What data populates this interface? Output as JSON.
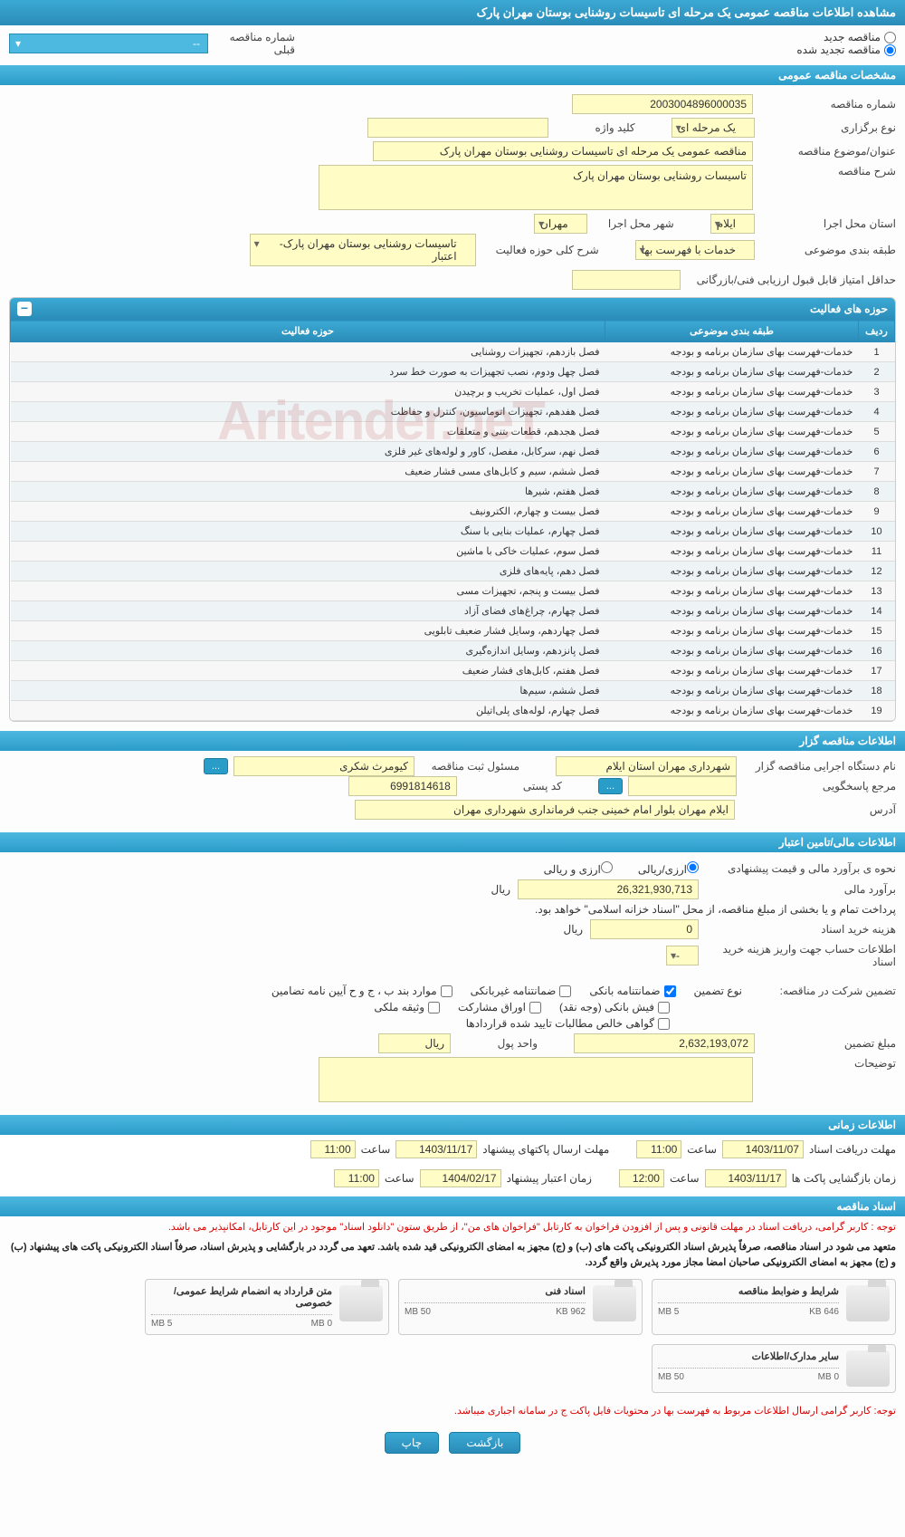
{
  "header": {
    "title": "مشاهده اطلاعات مناقصه عمومی یک مرحله ای تاسیسات روشنایی بوستان مهران پارک"
  },
  "radio": {
    "new": "مناقصه جدید",
    "renewed": "مناقصه تجدید شده",
    "prev_label": "شماره مناقصه قبلی",
    "prev_value": "--"
  },
  "sections": {
    "general": "مشخصات مناقصه عمومی",
    "org": "اطلاعات مناقصه گزار",
    "finance": "اطلاعات مالی/تامین اعتبار",
    "time": "اطلاعات زمانی",
    "docs": "اسناد مناقصه"
  },
  "general": {
    "tender_no_label": "شماره مناقصه",
    "tender_no": "2003004896000035",
    "type_label": "نوع برگزاری",
    "type": "یک مرحله ای",
    "keyword_label": "کلید واژه",
    "keyword": "",
    "title_label": "عنوان/موضوع مناقصه",
    "title": "مناقصه عمومی یک مرحله ای تاسیسات روشنایی بوستان مهران پارک",
    "desc_label": "شرح مناقصه",
    "desc": "تاسیسات روشنایی بوستان مهران پارک",
    "province_label": "استان محل اجرا",
    "province": "ایلام",
    "city_label": "شهر محل اجرا",
    "city": "مهران",
    "subject_cat_label": "طبقه بندی موضوعی",
    "subject_cat": "خدمات با فهرست بها",
    "activity_scope_label": "شرح کلی حوزه فعالیت",
    "activity_scope": "تاسیسات روشنایی بوستان مهران پارک- اعتبار",
    "min_score_label": "حداقل امتیاز قابل قبول ارزیابی فنی/بازرگانی",
    "min_score": ""
  },
  "activity_panel": {
    "title": "حوزه های فعالیت",
    "col_row": "ردیف",
    "col_cat": "طبقه بندی موضوعی",
    "col_act": "حوزه فعالیت",
    "rows": [
      {
        "n": "1",
        "cat": "خدمات-فهرست بهای سازمان برنامه و بودجه",
        "act": "فصل بازدهم، تجهیزات روشنایی"
      },
      {
        "n": "2",
        "cat": "خدمات-فهرست بهای سازمان برنامه و بودجه",
        "act": "فصل چهل ودوم، نصب تجهیزات به صورت خط سرد"
      },
      {
        "n": "3",
        "cat": "خدمات-فهرست بهای سازمان برنامه و بودجه",
        "act": "فصل اول، عملیات تخریب و برچیدن"
      },
      {
        "n": "4",
        "cat": "خدمات-فهرست بهای سازمان برنامه و بودجه",
        "act": "فصل هفدهم، تجهیزات اتوماسیون، کنترل و حفاظت"
      },
      {
        "n": "5",
        "cat": "خدمات-فهرست بهای سازمان برنامه و بودجه",
        "act": "فصل هجدهم، قطعات بتنی و متعلقات"
      },
      {
        "n": "6",
        "cat": "خدمات-فهرست بهای سازمان برنامه و بودجه",
        "act": "فصل نهم، سرکابل، مفصل، کاور و لوله‌های غیر فلزی"
      },
      {
        "n": "7",
        "cat": "خدمات-فهرست بهای سازمان برنامه و بودجه",
        "act": "فصل ششم، سیم و کابل‌های مسی فشار ضعیف"
      },
      {
        "n": "8",
        "cat": "خدمات-فهرست بهای سازمان برنامه و بودجه",
        "act": "فصل هفتم، شیرها"
      },
      {
        "n": "9",
        "cat": "خدمات-فهرست بهای سازمان برنامه و بودجه",
        "act": "فصل بیست و چهارم، الکترونیف"
      },
      {
        "n": "10",
        "cat": "خدمات-فهرست بهای سازمان برنامه و بودجه",
        "act": "فصل چهارم، عملیات بنایی با سنگ"
      },
      {
        "n": "11",
        "cat": "خدمات-فهرست بهای سازمان برنامه و بودجه",
        "act": "فصل سوم، عملیات خاکی با ماشین"
      },
      {
        "n": "12",
        "cat": "خدمات-فهرست بهای سازمان برنامه و بودجه",
        "act": "فصل دهم، پایه‌های فلزی"
      },
      {
        "n": "13",
        "cat": "خدمات-فهرست بهای سازمان برنامه و بودجه",
        "act": "فصل بیست و پنجم، تجهیزات مسی"
      },
      {
        "n": "14",
        "cat": "خدمات-فهرست بهای سازمان برنامه و بودجه",
        "act": "فصل چهارم، چراغ‌های فضای آزاد"
      },
      {
        "n": "15",
        "cat": "خدمات-فهرست بهای سازمان برنامه و بودجه",
        "act": "فصل چهاردهم، وسایل فشار ضعیف تابلویی"
      },
      {
        "n": "16",
        "cat": "خدمات-فهرست بهای سازمان برنامه و بودجه",
        "act": "فصل پانزدهم، وسایل اندازه‌گیری"
      },
      {
        "n": "17",
        "cat": "خدمات-فهرست بهای سازمان برنامه و بودجه",
        "act": "فصل هفتم، کابل‌های فشار ضعیف"
      },
      {
        "n": "18",
        "cat": "خدمات-فهرست بهای سازمان برنامه و بودجه",
        "act": "فصل ششم، سیم‌ها"
      },
      {
        "n": "19",
        "cat": "خدمات-فهرست بهای سازمان برنامه و بودجه",
        "act": "فصل چهارم، لوله‌های پلی‌اتیلن"
      }
    ]
  },
  "org": {
    "agency_label": "نام دستگاه اجرایی مناقصه گزار",
    "agency": "شهرداری مهران استان ایلام",
    "manager_label": "مسئول ثبت مناقصه",
    "manager": "کیومرث   شکری",
    "contact_label": "مرجع پاسخگویی",
    "contact": "",
    "postal_label": "کد پستی",
    "postal": "6991814618",
    "address_label": "آدرس",
    "address": "ایلام   مهران بلوار امام خمینی جنب فرمانداری شهرداری مهران",
    "more_btn": "..."
  },
  "finance": {
    "est_label": "نحوه ی برآورد مالی و قیمت پیشنهادی",
    "est_opt1": "ارزی/ریالی",
    "est_opt2": "ارزی و ریالی",
    "amount_label": "برآورد مالی",
    "amount": "26,321,930,713",
    "unit": "ریال",
    "treasury_note": "پرداخت تمام و یا بخشی از مبلغ مناقصه، از محل \"اسناد خزانه اسلامی\" خواهد بود.",
    "doc_cost_label": "هزینه خرید اسناد",
    "doc_cost": "0",
    "acc_label": "اطلاعات حساب جهت واریز هزینه خرید اسناد",
    "acc": "--",
    "guarantee_type_label": "نوع تضمین",
    "guarantee_label": "تضمین شرکت در مناقصه:",
    "g_bank": "ضمانتنامه بانکی",
    "g_nonbank": "ضمانتنامه غیربانکی",
    "g_clause": "موارد بند ب ، ج و ح آیین نامه تضامین",
    "g_fish": "فیش بانکی (وجه نقد)",
    "g_bonds": "اوراق مشارکت",
    "g_deed": "وثیقه ملکی",
    "g_cert": "گواهی خالص مطالبات تایید شده قراردادها",
    "g_amount_label": "مبلغ تضمین",
    "g_amount": "2,632,193,072",
    "g_unit_label": "واحد پول",
    "g_unit": "ریال",
    "remarks_label": "توضیحات",
    "remarks": ""
  },
  "time": {
    "receive_label": "مهلت دریافت اسناد",
    "receive_date": "1403/11/07",
    "receive_time": "11:00",
    "send_label": "مهلت ارسال پاکتهای پیشنهاد",
    "send_date": "1403/11/17",
    "send_time": "11:00",
    "open_label": "زمان بازگشایی پاکت ها",
    "open_date": "1403/11/17",
    "open_time": "12:00",
    "validity_label": "زمان اعتبار پیشنهاد",
    "validity_date": "1404/02/17",
    "validity_time": "11:00",
    "hour_label": "ساعت"
  },
  "docs": {
    "note1": "توجه : کاربر گرامی، دریافت اسناد در مهلت قانونی و پس از افزودن فراخوان به کارتابل \"فراخوان های من\"، از طریق ستون \"دانلود اسناد\" موجود در این کارتابل، امکانپذیر می باشد.",
    "note2": "متعهد می شود در اسناد مناقصه، صرفاً پذیرش اسناد الکترونیکی پاکت های (ب) و (ج) مجهز به امضای الکترونیکی قید شده باشد. تعهد می گردد در بارگشایی و پذیرش اسناد، صرفاً اسناد الکترونیکی پاکت های پیشنهاد (ب) و (ج) مجهز به امضای الکترونیکی صاحبان امضا مجاز مورد پذیرش واقع گردد.",
    "cards": [
      {
        "title": "شرایط و ضوابط مناقصه",
        "size": "646 KB",
        "cap": "5 MB"
      },
      {
        "title": "اسناد فنی",
        "size": "962 KB",
        "cap": "50 MB"
      },
      {
        "title": "متن قرارداد به انضمام شرایط عمومی/خصوصی",
        "size": "0 MB",
        "cap": "5 MB"
      },
      {
        "title": "سایر مدارک/اطلاعات",
        "size": "0 MB",
        "cap": "50 MB"
      }
    ],
    "note3": "توجه: کاربر گرامی ارسال اطلاعات مربوط به فهرست بها در محتویات فایل پاکت ج در سامانه اجباری میباشد."
  },
  "footer": {
    "back": "بازگشت",
    "print": "چاپ"
  },
  "watermark": "Aritender.neT"
}
